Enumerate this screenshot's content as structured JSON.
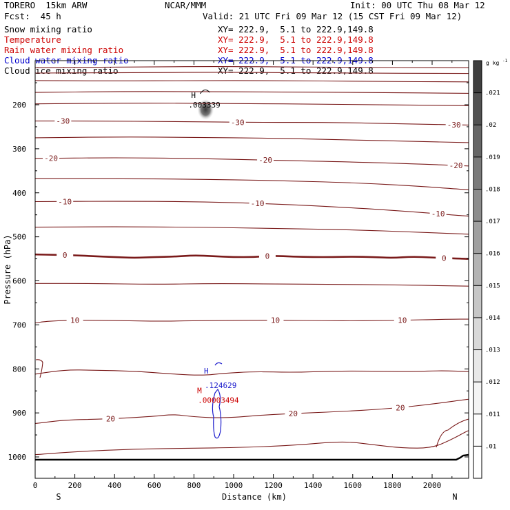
{
  "header": {
    "model": "TORERO  15km ARW",
    "org": "NCAR/MMM",
    "init": "Init: 00 UTC Thu 08 Mar 12",
    "fcst": "Fcst:  45 h",
    "valid": "Valid: 21 UTC Fri 09 Mar 12 (15 CST Fri 09 Mar 12)"
  },
  "fields": [
    {
      "name": "Snow mixing ratio",
      "xy": "XY= 222.9,  5.1 to 222.9,149.8",
      "color": "#000000"
    },
    {
      "name": "Temperature",
      "xy": "XY= 222.9,  5.1 to 222.9,149.8",
      "color": "#cc0000"
    },
    {
      "name": "Rain water mixing ratio",
      "xy": "XY= 222.9,  5.1 to 222.9,149.8",
      "color": "#cc0000"
    },
    {
      "name": "Cloud water mixing ratio",
      "xy": "XY= 222.9,  5.1 to 222.9,149.8",
      "color": "#0000cc"
    },
    {
      "name": "Cloud ice mixing ratio",
      "xy": "XY= 222.9,  5.1 to 222.9,149.8",
      "color": "#000000"
    }
  ],
  "chart_data": {
    "type": "contour-cross-section",
    "xlabel": "Distance (km)",
    "ylabel": "Pressure (hPa)",
    "xlim": [
      0,
      2180
    ],
    "ylim": [
      1050,
      100
    ],
    "xticks": [
      0,
      200,
      400,
      600,
      800,
      1000,
      1200,
      1400,
      1600,
      1800,
      2000
    ],
    "yticks": [
      200,
      300,
      400,
      500,
      600,
      700,
      800,
      900,
      1000
    ],
    "end_labels": {
      "left": "S",
      "right": "N"
    },
    "temperature_contours": [
      {
        "level": -55,
        "points": [
          [
            0,
            116
          ],
          [
            500,
            114
          ],
          [
            1000,
            113
          ],
          [
            1500,
            115
          ],
          [
            2180,
            116
          ]
        ]
      },
      {
        "level": -50,
        "points": [
          [
            0,
            128
          ],
          [
            500,
            127
          ],
          [
            1000,
            126
          ],
          [
            1500,
            128
          ],
          [
            2180,
            129
          ]
        ]
      },
      {
        "level": -45,
        "points": [
          [
            0,
            145
          ],
          [
            400,
            146
          ],
          [
            800,
            145
          ],
          [
            1200,
            145
          ],
          [
            1700,
            147
          ],
          [
            2180,
            148
          ]
        ]
      },
      {
        "level": -40,
        "points": [
          [
            0,
            172
          ],
          [
            400,
            170
          ],
          [
            800,
            170
          ],
          [
            1200,
            171
          ],
          [
            1700,
            172
          ],
          [
            2180,
            174
          ]
        ]
      },
      {
        "level": -35,
        "points": [
          [
            0,
            198
          ],
          [
            500,
            196
          ],
          [
            1000,
            197
          ],
          [
            1500,
            199
          ],
          [
            2180,
            202
          ]
        ]
      },
      {
        "level": -30,
        "points": [
          [
            0,
            237
          ],
          [
            300,
            237
          ],
          [
            700,
            238
          ],
          [
            1100,
            240
          ],
          [
            1500,
            240
          ],
          [
            1900,
            244
          ],
          [
            2180,
            246
          ]
        ]
      },
      {
        "level": -25,
        "points": [
          [
            0,
            275
          ],
          [
            400,
            273
          ],
          [
            800,
            274
          ],
          [
            1200,
            276
          ],
          [
            1600,
            280
          ],
          [
            1900,
            283
          ],
          [
            2180,
            286
          ]
        ]
      },
      {
        "level": -20,
        "points": [
          [
            0,
            322
          ],
          [
            400,
            320
          ],
          [
            800,
            322
          ],
          [
            1200,
            326
          ],
          [
            1600,
            330
          ],
          [
            1900,
            334
          ],
          [
            2180,
            339
          ]
        ]
      },
      {
        "level": -15,
        "points": [
          [
            0,
            368
          ],
          [
            400,
            368
          ],
          [
            800,
            369
          ],
          [
            1200,
            372
          ],
          [
            1600,
            377
          ],
          [
            1900,
            384
          ],
          [
            2180,
            393
          ]
        ]
      },
      {
        "level": -10,
        "points": [
          [
            0,
            420
          ],
          [
            400,
            419
          ],
          [
            800,
            420
          ],
          [
            1200,
            425
          ],
          [
            1600,
            434
          ],
          [
            1900,
            443
          ],
          [
            2180,
            453
          ]
        ]
      },
      {
        "level": -5,
        "points": [
          [
            0,
            478
          ],
          [
            400,
            477
          ],
          [
            800,
            478
          ],
          [
            1200,
            481
          ],
          [
            1600,
            484
          ],
          [
            1900,
            489
          ],
          [
            2180,
            494
          ]
        ]
      },
      {
        "level": 0,
        "points": [
          [
            0,
            540
          ],
          [
            100,
            541
          ],
          [
            200,
            542
          ],
          [
            300,
            544
          ],
          [
            400,
            546
          ],
          [
            500,
            548
          ],
          [
            600,
            546
          ],
          [
            700,
            545
          ],
          [
            800,
            542
          ],
          [
            900,
            544
          ],
          [
            1000,
            546
          ],
          [
            1100,
            546
          ],
          [
            1200,
            543
          ],
          [
            1300,
            545
          ],
          [
            1400,
            546
          ],
          [
            1500,
            546
          ],
          [
            1600,
            545
          ],
          [
            1700,
            546
          ],
          [
            1800,
            548
          ],
          [
            1900,
            545
          ],
          [
            2000,
            547
          ],
          [
            2100,
            549
          ],
          [
            2180,
            550
          ]
        ]
      },
      {
        "level": 5,
        "points": [
          [
            0,
            606
          ],
          [
            300,
            606
          ],
          [
            600,
            608
          ],
          [
            900,
            606
          ],
          [
            1200,
            607
          ],
          [
            1500,
            608
          ],
          [
            1800,
            609
          ],
          [
            2180,
            612
          ]
        ]
      },
      {
        "level": 10,
        "points": [
          [
            0,
            696
          ],
          [
            50,
            692
          ],
          [
            200,
            689
          ],
          [
            400,
            690
          ],
          [
            600,
            692
          ],
          [
            900,
            690
          ],
          [
            1200,
            689
          ],
          [
            1500,
            691
          ],
          [
            1800,
            690
          ],
          [
            2100,
            687
          ],
          [
            2180,
            687
          ]
        ]
      },
      {
        "level": 15,
        "points": [
          [
            0,
            812
          ],
          [
            150,
            802
          ],
          [
            300,
            803
          ],
          [
            500,
            805
          ],
          [
            700,
            812
          ],
          [
            850,
            815
          ],
          [
            950,
            810
          ],
          [
            1100,
            806
          ],
          [
            1300,
            808
          ],
          [
            1500,
            805
          ],
          [
            1700,
            805
          ],
          [
            1900,
            806
          ],
          [
            2050,
            804
          ],
          [
            2180,
            806
          ]
        ]
      },
      {
        "level": 20,
        "points": [
          [
            0,
            924
          ],
          [
            150,
            916
          ],
          [
            350,
            914
          ],
          [
            600,
            908
          ],
          [
            700,
            903
          ],
          [
            800,
            909
          ],
          [
            950,
            912
          ],
          [
            1200,
            903
          ],
          [
            1500,
            898
          ],
          [
            1800,
            890
          ],
          [
            2000,
            880
          ],
          [
            2180,
            869
          ]
        ]
      },
      {
        "level": 25,
        "points": [
          [
            0,
            995
          ],
          [
            200,
            988
          ],
          [
            500,
            982
          ],
          [
            800,
            980
          ],
          [
            1000,
            979
          ],
          [
            1300,
            974
          ],
          [
            1550,
            964
          ],
          [
            1700,
            972
          ],
          [
            1850,
            980
          ],
          [
            2000,
            980
          ],
          [
            2100,
            960
          ],
          [
            2180,
            940
          ]
        ]
      }
    ],
    "labeled_contours": [
      {
        "level": -30,
        "label": "-30",
        "x": [
          140,
          1020,
          2110
        ]
      },
      {
        "level": -20,
        "label": "-20",
        "x": [
          80,
          1160,
          2120
        ]
      },
      {
        "level": -10,
        "label": "-10",
        "x": [
          150,
          1120,
          2030
        ]
      },
      {
        "level": 0,
        "label": "0",
        "x": [
          150,
          1170,
          2060
        ]
      },
      {
        "level": 10,
        "label": "10",
        "x": [
          200,
          1210,
          1850
        ]
      },
      {
        "level": 20,
        "label": "20",
        "x": [
          380,
          1300,
          1840
        ]
      }
    ],
    "snow_max": {
      "label": "H",
      "value": ".003339",
      "x": 838,
      "p": 200
    },
    "cloud_water_max": {
      "label": "H",
      "value": ".124629",
      "x": 920,
      "p": 820
    },
    "rain_water_max": {
      "label": "M",
      "value": ".00003494",
      "x": 910,
      "p": 860
    },
    "colorbar": {
      "unit": "g kg",
      "unit_exp": "-1",
      "levels": [
        ".021",
        ".02",
        ".019",
        ".018",
        ".017",
        ".016",
        ".015",
        ".014",
        ".013",
        ".012",
        ".011",
        ".01"
      ],
      "colors": [
        "#3f3f3f",
        "#525252",
        "#666666",
        "#7a7a7a",
        "#8d8d8d",
        "#a0a0a0",
        "#b3b3b3",
        "#c6c6c6",
        "#d8d8d8",
        "#e8e8e8",
        "#f4f4f4",
        "#fcfcfc",
        "#ffffff"
      ]
    }
  }
}
